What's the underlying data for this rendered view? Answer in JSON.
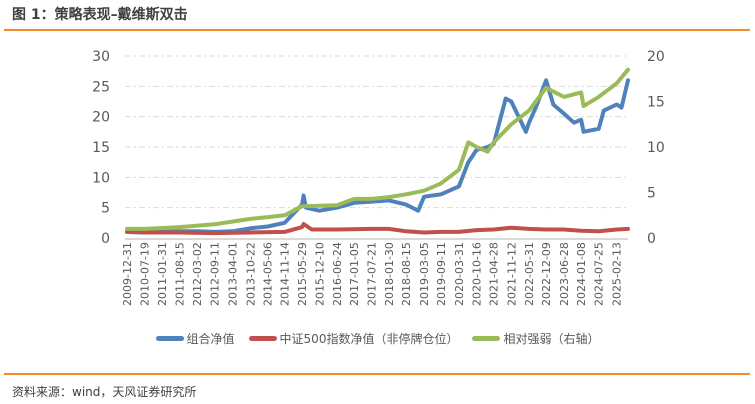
{
  "title": "图 1：策略表现–戴维斯双击",
  "source": "资料来源：wind，天风证券研究所",
  "chart_data": {
    "type": "line",
    "title": "",
    "x_tick_labels": [
      "2009-12-31",
      "2010-07-19",
      "2011-01-31",
      "2011-08-15",
      "2012-03-02",
      "2012-09-11",
      "2013-04-01",
      "2013-10-22",
      "2014-05-06",
      "2014-11-14",
      "2015-05-29",
      "2015-12-10",
      "2016-06-24",
      "2017-01-05",
      "2017-07-21",
      "2018-01-30",
      "2018-08-15",
      "2019-03-05",
      "2019-09-11",
      "2020-03-31",
      "2020-10-16",
      "2021-04-28",
      "2021-11-12",
      "2022-05-31",
      "2022-12-09",
      "2023-06-28",
      "2024-01-08",
      "2024-07-25",
      "2025-02-13"
    ],
    "x_end": "2025-06-20",
    "left_axis": {
      "ylim": [
        0,
        30
      ],
      "ticks": [
        0,
        5,
        10,
        15,
        20,
        25,
        30
      ]
    },
    "right_axis": {
      "ylim": [
        0,
        20
      ],
      "ticks": [
        0,
        5,
        10,
        15,
        20
      ]
    },
    "grid": true,
    "legend_position": "bottom",
    "series": [
      {
        "name": "组合净值",
        "axis": "left",
        "color": "#4f81bd",
        "x": [
          "2009-12-31",
          "2010-07-19",
          "2011-01-31",
          "2011-08-15",
          "2012-03-02",
          "2012-09-11",
          "2013-04-01",
          "2013-10-22",
          "2014-05-06",
          "2014-11-14",
          "2015-05-29",
          "2015-06-15",
          "2015-07-10",
          "2015-12-10",
          "2016-06-24",
          "2017-01-05",
          "2017-07-21",
          "2018-01-30",
          "2018-08-15",
          "2018-12-28",
          "2019-03-05",
          "2019-09-11",
          "2020-03-31",
          "2020-07-15",
          "2020-10-16",
          "2021-02-18",
          "2021-04-28",
          "2021-09-10",
          "2021-11-12",
          "2022-04-26",
          "2022-05-31",
          "2022-08-15",
          "2022-12-09",
          "2023-03-01",
          "2023-06-28",
          "2023-10-20",
          "2024-01-08",
          "2024-02-05",
          "2024-07-25",
          "2024-09-20",
          "2025-02-13",
          "2025-04-08",
          "2025-06-20"
        ],
        "values": [
          1.0,
          0.9,
          1.0,
          1.1,
          1.1,
          1.0,
          1.1,
          1.6,
          1.9,
          2.5,
          5.5,
          7.0,
          5.0,
          4.5,
          5.0,
          5.8,
          6.0,
          6.2,
          5.5,
          4.5,
          6.8,
          7.2,
          8.5,
          12.5,
          14.5,
          15.0,
          15.5,
          23.0,
          22.5,
          17.5,
          19.0,
          21.5,
          26.0,
          22.0,
          20.5,
          19.0,
          19.5,
          17.5,
          18.0,
          21.0,
          22.0,
          21.5,
          26.0
        ]
      },
      {
        "name": "中证500指数净值（非停牌仓位）",
        "axis": "left",
        "color": "#c0504d",
        "x": [
          "2009-12-31",
          "2010-07-19",
          "2011-08-15",
          "2012-09-11",
          "2013-10-22",
          "2014-11-14",
          "2015-05-29",
          "2015-06-15",
          "2015-09-15",
          "2016-06-24",
          "2017-07-21",
          "2018-01-30",
          "2018-08-15",
          "2019-03-05",
          "2019-09-11",
          "2020-03-31",
          "2020-10-16",
          "2021-04-28",
          "2021-11-12",
          "2022-05-31",
          "2022-12-09",
          "2023-06-28",
          "2024-01-08",
          "2024-07-25",
          "2025-02-13",
          "2025-06-20"
        ],
        "values": [
          1.0,
          0.9,
          0.9,
          0.8,
          0.9,
          1.0,
          1.8,
          2.3,
          1.4,
          1.4,
          1.5,
          1.5,
          1.1,
          0.9,
          1.0,
          1.0,
          1.3,
          1.4,
          1.7,
          1.5,
          1.4,
          1.4,
          1.2,
          1.1,
          1.4,
          1.5
        ]
      },
      {
        "name": "相对强弱（右轴）",
        "axis": "right",
        "color": "#9bbb59",
        "x": [
          "2009-12-31",
          "2010-07-19",
          "2011-08-15",
          "2012-09-11",
          "2013-04-01",
          "2013-10-22",
          "2014-05-06",
          "2014-11-14",
          "2015-05-29",
          "2016-06-24",
          "2017-01-05",
          "2017-07-21",
          "2018-01-30",
          "2018-08-15",
          "2019-03-05",
          "2019-09-11",
          "2020-03-31",
          "2020-07-15",
          "2020-10-16",
          "2021-02-18",
          "2021-04-28",
          "2021-11-12",
          "2022-05-31",
          "2022-12-09",
          "2023-06-28",
          "2024-01-08",
          "2024-02-05",
          "2024-07-25",
          "2025-02-13",
          "2025-06-20"
        ],
        "values": [
          1.0,
          1.0,
          1.2,
          1.5,
          1.8,
          2.1,
          2.3,
          2.5,
          3.5,
          3.6,
          4.3,
          4.3,
          4.5,
          4.8,
          5.2,
          6.0,
          7.5,
          10.5,
          10.0,
          9.5,
          10.5,
          12.5,
          14.0,
          16.5,
          15.5,
          16.0,
          14.5,
          15.5,
          17.0,
          18.5
        ]
      }
    ]
  }
}
